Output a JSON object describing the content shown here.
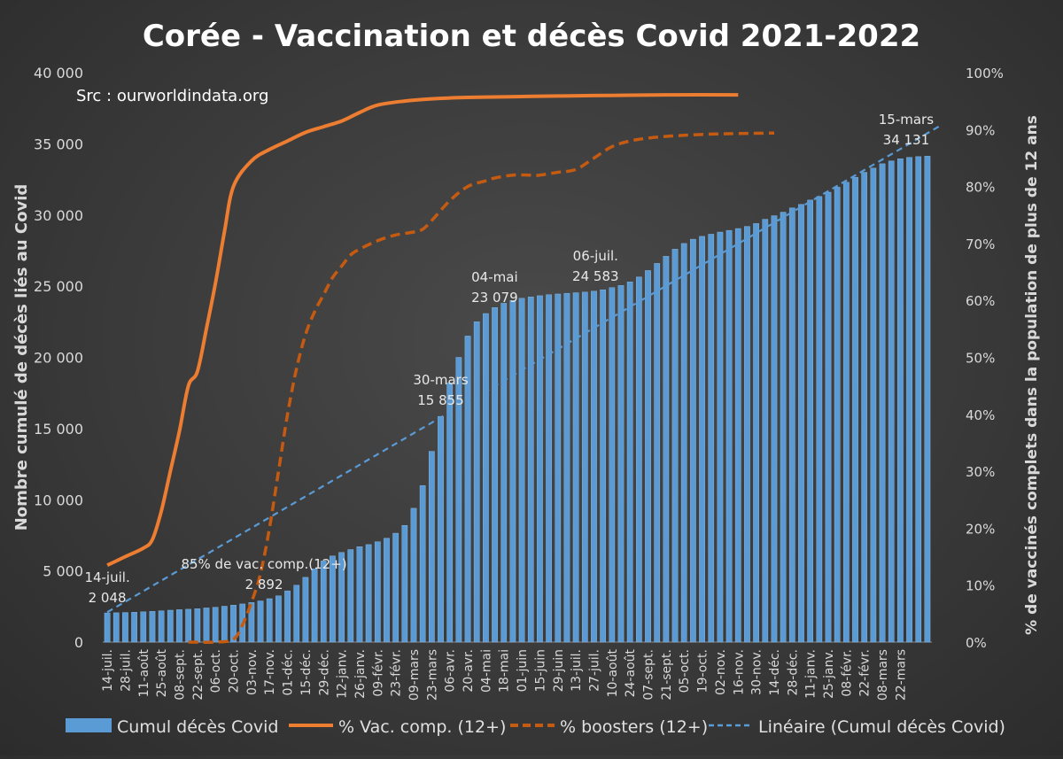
{
  "chart_data": {
    "type": "bar",
    "title": "Corée  - Vaccination et décès Covid 2021-2022",
    "source_note": "Src : ourworldindata.org",
    "ylabel_left": "Nombre cumulé de décès liés au Covid",
    "ylabel_right": "% de vaccinés complets dans  la population de plus de 12 ans",
    "y_left_ticks": [
      "0",
      "5 000",
      "10 000",
      "15 000",
      "20 000",
      "25 000",
      "30 000",
      "35 000",
      "40 000"
    ],
    "y_right_ticks": [
      "0%",
      "10%",
      "20%",
      "30%",
      "40%",
      "50%",
      "60%",
      "70%",
      "80%",
      "90%",
      "100%"
    ],
    "ylim_left": [
      0,
      40000
    ],
    "ylim_right": [
      0,
      100
    ],
    "x_tick_labels": [
      "14-juil.",
      "28-juil.",
      "11-août",
      "25-août",
      "08-sept.",
      "22-sept.",
      "06-oct.",
      "20-oct.",
      "03-nov.",
      "17-nov.",
      "01-déc.",
      "15-déc.",
      "29-déc.",
      "12-janv.",
      "26-janv.",
      "09-févr.",
      "23-févr.",
      "09-mars",
      "23-mars",
      "06-avr.",
      "20-avr.",
      "04-mai",
      "18-mai",
      "01-juin",
      "15-juin",
      "29-juin",
      "13-juil.",
      "27-juil.",
      "10-août",
      "24-août",
      "07-sept.",
      "21-sept.",
      "05-oct.",
      "19-oct.",
      "02-nov.",
      "16-nov.",
      "30-nov.",
      "14-déc.",
      "28-déc.",
      "11-janv.",
      "25-janv.",
      "08-févr.",
      "22-févr.",
      "08-mars",
      "22-mars"
    ],
    "bars_name": "Cumul décès Covid",
    "bars": [
      2048,
      2060,
      2080,
      2100,
      2130,
      2160,
      2200,
      2240,
      2280,
      2310,
      2350,
      2400,
      2450,
      2520,
      2600,
      2680,
      2780,
      2892,
      3050,
      3250,
      3600,
      4000,
      4550,
      5150,
      5700,
      6050,
      6300,
      6500,
      6700,
      6850,
      7050,
      7300,
      7650,
      8200,
      9400,
      11000,
      13400,
      15855,
      18200,
      20000,
      21500,
      22500,
      23079,
      23500,
      23800,
      24000,
      24150,
      24250,
      24330,
      24400,
      24450,
      24500,
      24540,
      24583,
      24650,
      24750,
      24900,
      25050,
      25300,
      25650,
      26100,
      26600,
      27100,
      27600,
      28000,
      28300,
      28500,
      28650,
      28800,
      28920,
      29050,
      29200,
      29400,
      29700,
      29950,
      30200,
      30500,
      30750,
      31050,
      31300,
      31600,
      31950,
      32300,
      32650,
      33000,
      33300,
      33600,
      33800,
      33950,
      34050,
      34100,
      34131
    ],
    "vac_name": "% Vac. comp. (12+)",
    "vac_comp_x": [
      0,
      2,
      4,
      5,
      6,
      7,
      8,
      9,
      10,
      11,
      12,
      13,
      14,
      16,
      18,
      20,
      22,
      24,
      26,
      28,
      30,
      33,
      36,
      39,
      42,
      46,
      50,
      56,
      62,
      70
    ],
    "vac_comp_y": [
      13.5,
      15,
      16.5,
      18,
      23,
      30,
      37,
      45,
      47.5,
      55,
      63,
      72,
      80,
      84.5,
      86.5,
      88,
      89.5,
      90.5,
      91.5,
      93,
      94.3,
      95,
      95.4,
      95.6,
      95.7,
      95.8,
      95.9,
      96,
      96.1,
      96.1
    ],
    "booster_name": "% boosters (12+)",
    "boosters_x": [
      9,
      12,
      14,
      15,
      16,
      17,
      18,
      19,
      20,
      21,
      22,
      23,
      24,
      25,
      26,
      27,
      28,
      30,
      32,
      34,
      35,
      36,
      38,
      40,
      42,
      43,
      45,
      47,
      48,
      50,
      52,
      54,
      56,
      58,
      60,
      62,
      64,
      67,
      70,
      74
    ],
    "boosters_y": [
      0,
      0,
      0.5,
      3,
      7,
      12,
      20,
      30,
      40,
      48,
      54,
      58,
      61,
      64,
      66,
      68,
      69,
      70.5,
      71.5,
      72,
      72.5,
      74,
      77.5,
      80,
      81,
      81.5,
      82,
      82,
      82,
      82.5,
      83,
      85,
      87,
      88,
      88.5,
      88.8,
      89,
      89.2,
      89.3,
      89.4
    ],
    "trend_name": "Linéaire (Cumul décès Covid)",
    "trend_y": [
      2100,
      36300
    ],
    "annotations": [
      {
        "label": "14-juil.",
        "value": "2 048",
        "x": 0
      },
      {
        "label": "85% de vac. comp.(12+)",
        "value": "2 892",
        "x": 17
      },
      {
        "label": "30-mars",
        "value": "15 855",
        "x": 37
      },
      {
        "label": "04-mai",
        "value": "23 079",
        "x": 42
      },
      {
        "label": "06-juil.",
        "value": "24 583",
        "x": 53
      },
      {
        "label": "15-mars",
        "value": "34 131",
        "x": 91
      }
    ],
    "colors": {
      "bars": "#5b9bd5",
      "vac_comp": "#ed7d31",
      "boosters": "#c55a11",
      "trend": "#5b9bd5",
      "text": "#ffffff"
    }
  }
}
